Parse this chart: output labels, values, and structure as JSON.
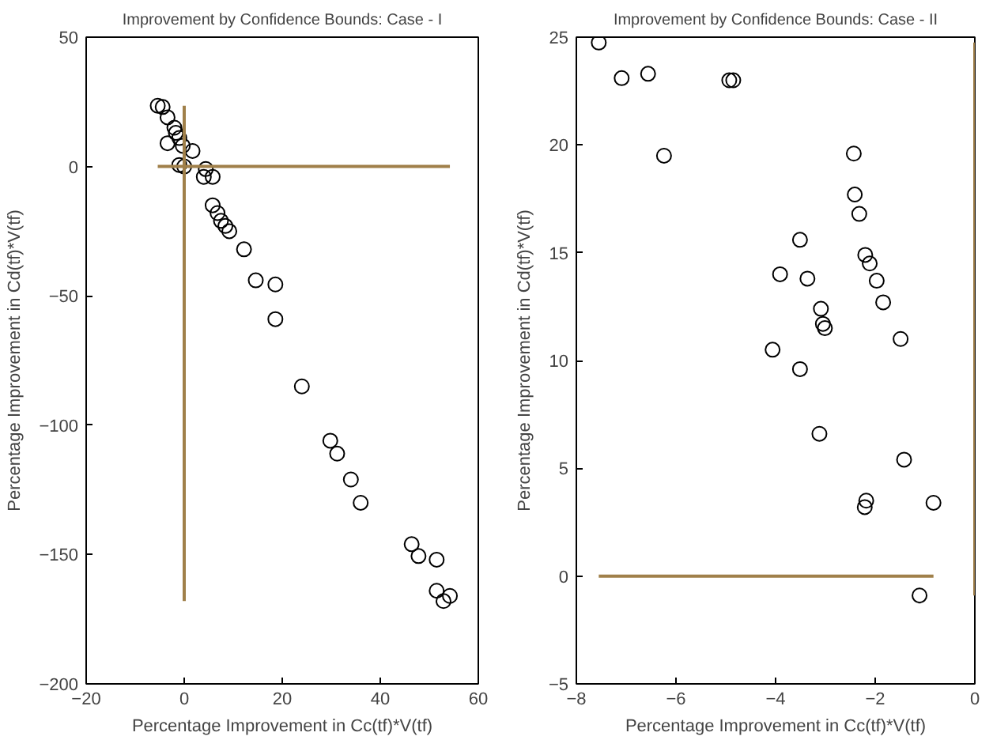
{
  "chart_data": [
    {
      "type": "scatter",
      "title": "Improvement by Confidence Bounds: Case - I",
      "xlabel": "Percentage Improvement in Cc(tf)*V(tf)",
      "ylabel": "Percentage Improvement in Cd(tf)*V(tf)",
      "xlim": [
        -20,
        60
      ],
      "ylim": [
        -200,
        50
      ],
      "xticks": [
        -20,
        0,
        20,
        40,
        60
      ],
      "yticks": [
        -200,
        -150,
        -100,
        -50,
        0,
        50
      ],
      "grid": false,
      "series": [
        {
          "marker": "circle",
          "color": "#000000",
          "x": [
            -5.4,
            -4.4,
            -3.4,
            -2,
            -3.4,
            -1.7,
            -1,
            -0.3,
            1.7,
            -1,
            0,
            4.4,
            4,
            5.8,
            5.8,
            6.8,
            7.5,
            8.4,
            9.2,
            12.2,
            14.6,
            18.6,
            18.6,
            24,
            29.8,
            31.2,
            34,
            36,
            46.4,
            47.8,
            51.5,
            51.5,
            52.9,
            54.2
          ],
          "values": [
            23.5,
            23,
            19,
            15,
            9,
            13,
            11,
            8,
            6,
            0.6,
            0,
            -1,
            -4,
            -4,
            -15,
            -18,
            -21,
            -23,
            -25,
            -32,
            -44,
            -45.6,
            -59,
            -85,
            -106,
            -111,
            -121,
            -130,
            -146,
            -150.6,
            -152,
            -164,
            -168,
            -166
          ]
        },
        {
          "type": "line",
          "color": "#a0804a",
          "x": [
            -5.4,
            54.2
          ],
          "values": [
            0,
            0
          ]
        },
        {
          "type": "line",
          "color": "#a0804a",
          "x": [
            0,
            0
          ],
          "values": [
            -168,
            23.5
          ]
        }
      ]
    },
    {
      "type": "scatter",
      "title": "Improvement by Confidence Bounds: Case - II",
      "xlabel": "Percentage Improvement in Cc(tf)*V(tf)",
      "ylabel": "Percentage Improvement in Cd(tf)*V(tf)",
      "xlim": [
        -8,
        0
      ],
      "ylim": [
        -5,
        25
      ],
      "xticks": [
        -8,
        -6,
        -4,
        -2,
        0
      ],
      "yticks": [
        -5,
        0,
        5,
        10,
        15,
        20,
        25
      ],
      "grid": false,
      "series": [
        {
          "marker": "circle",
          "color": "#000000",
          "x": [
            -7.55,
            -7.09,
            -6.56,
            -6.24,
            -4.93,
            -4.85,
            -2.43,
            -2.41,
            -2.32,
            -3.51,
            -3.91,
            -3.36,
            -2.2,
            -2.11,
            -1.97,
            -1.84,
            -3.09,
            -3.05,
            -3.01,
            -1.49,
            -4.06,
            -3.51,
            -3.12,
            -1.42,
            -2.18,
            -2.21,
            -0.83,
            -1.11
          ],
          "values": [
            24.75,
            23.1,
            23.3,
            19.5,
            23.0,
            23.0,
            19.6,
            17.7,
            16.8,
            15.6,
            14.0,
            13.8,
            14.9,
            14.5,
            13.7,
            12.7,
            12.4,
            11.7,
            11.5,
            11.0,
            10.5,
            9.6,
            6.6,
            5.4,
            3.5,
            3.2,
            3.4,
            -0.9
          ]
        },
        {
          "type": "line",
          "color": "#a0804a",
          "x": [
            -7.55,
            -0.83
          ],
          "values": [
            0,
            0
          ]
        },
        {
          "type": "line",
          "color": "#a0804a",
          "x": [
            0,
            0
          ],
          "values": [
            -0.9,
            24.75
          ]
        }
      ]
    }
  ]
}
